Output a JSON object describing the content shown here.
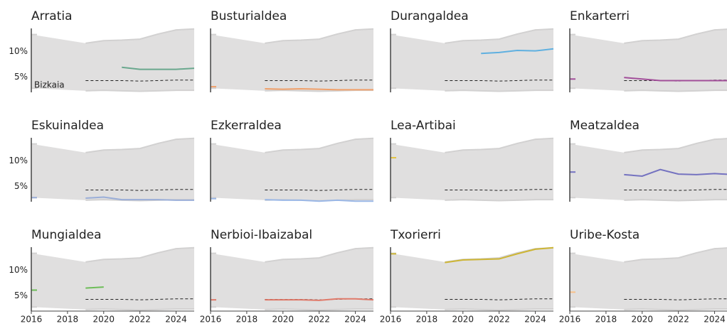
{
  "chart_data": {
    "type": "line",
    "x": [
      2016,
      2017,
      2018,
      2019,
      2020,
      2021,
      2022,
      2023,
      2024,
      2025
    ],
    "xlim": [
      2016,
      2025
    ],
    "xticks": [
      2016,
      2018,
      2020,
      2022,
      2024
    ],
    "ylim": [
      2,
      14.5
    ],
    "yticks": [
      {
        "value": 5,
        "label": "5%"
      },
      {
        "value": 10,
        "label": "10%"
      }
    ],
    "band": {
      "color": "#e0dfdf",
      "upper": [
        13.3,
        null,
        null,
        11.6,
        12.1,
        12.2,
        12.4,
        13.4,
        14.2,
        14.4
      ],
      "lower": [
        2.8,
        null,
        null,
        2.3,
        2.4,
        2.3,
        2.2,
        2.3,
        2.4,
        2.4
      ]
    },
    "reference": {
      "name": "Bizkaia",
      "color": "#222222",
      "values": [
        null,
        null,
        null,
        4.3,
        4.3,
        4.3,
        4.2,
        4.3,
        4.4,
        4.4
      ]
    },
    "series": [
      {
        "name": "Arratia",
        "color": "#6aa88e",
        "values": [
          null,
          null,
          null,
          null,
          null,
          6.9,
          6.5,
          6.5,
          6.5,
          6.7
        ]
      },
      {
        "name": "Busturialdea",
        "color": "#f0a06a",
        "values": [
          3.1,
          null,
          null,
          2.7,
          2.6,
          2.7,
          2.6,
          2.5,
          2.5,
          2.5
        ]
      },
      {
        "name": "Durangaldea",
        "color": "#5fb0e0",
        "values": [
          null,
          null,
          null,
          null,
          null,
          9.6,
          9.8,
          10.2,
          10.1,
          10.5
        ]
      },
      {
        "name": "Enkarterri",
        "color": "#a24f9a",
        "values": [
          4.6,
          null,
          null,
          4.9,
          4.6,
          4.3,
          4.3,
          4.3,
          4.3,
          4.3
        ]
      },
      {
        "name": "Eskuinaldea",
        "color": "#9aaed8",
        "values": [
          2.8,
          null,
          null,
          2.7,
          2.9,
          2.4,
          2.4,
          2.4,
          2.3,
          2.3
        ]
      },
      {
        "name": "Ezkerraldea",
        "color": "#9ab7e6",
        "values": [
          2.6,
          null,
          null,
          2.4,
          2.3,
          2.3,
          2.1,
          2.3,
          2.1,
          2.1
        ]
      },
      {
        "name": "Lea-Artibai",
        "color": "#e3c23f",
        "values": [
          10.6,
          null,
          null,
          null,
          null,
          null,
          null,
          null,
          null,
          null
        ]
      },
      {
        "name": "Meatzaldea",
        "color": "#7472c0",
        "values": [
          7.8,
          null,
          null,
          7.3,
          7.0,
          8.3,
          7.4,
          7.3,
          7.5,
          7.3
        ]
      },
      {
        "name": "Mungialdea",
        "color": "#6dbd58",
        "values": [
          6.1,
          null,
          null,
          6.5,
          6.7,
          null,
          null,
          null,
          null,
          null
        ]
      },
      {
        "name": "Nerbioi-Ibaizabal",
        "color": "#e07a6a",
        "values": [
          4.2,
          null,
          null,
          4.2,
          4.2,
          4.2,
          4.1,
          4.4,
          4.4,
          4.2
        ]
      },
      {
        "name": "Txorierri",
        "color": "#cdb534",
        "values": [
          13.2,
          null,
          null,
          11.5,
          12.0,
          12.1,
          12.2,
          13.2,
          14.1,
          14.4
        ]
      },
      {
        "name": "Uribe-Kosta",
        "color": "#f8c08a",
        "values": [
          5.7,
          null,
          null,
          null,
          null,
          null,
          null,
          null,
          null,
          null
        ]
      }
    ]
  }
}
